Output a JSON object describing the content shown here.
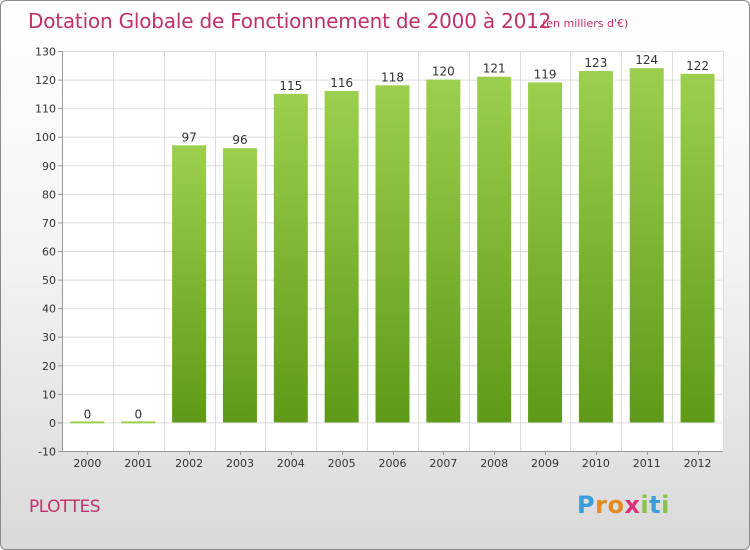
{
  "header": {
    "title": "Dotation Globale de Fonctionnement de 2000 à 2012",
    "subtitle": "(en milliers d'€)"
  },
  "footer": {
    "commune": "PLOTTES",
    "logo_letters": [
      "P",
      "r",
      "o",
      "x",
      "i",
      "t",
      "i"
    ],
    "logo_colors": [
      "#3a9fd8",
      "#e58a1f",
      "#e58a1f",
      "#d9317a",
      "#8bc34a",
      "#3a9fd8",
      "#8bc34a"
    ]
  },
  "chart_data": {
    "type": "bar",
    "title": "Dotation Globale de Fonctionnement de 2000 à 2012",
    "subtitle": "(en milliers d'€)",
    "categories": [
      "2000",
      "2001",
      "2002",
      "2003",
      "2004",
      "2005",
      "2006",
      "2007",
      "2008",
      "2009",
      "2010",
      "2011",
      "2012"
    ],
    "values": [
      0,
      0,
      97,
      96,
      115,
      116,
      118,
      120,
      121,
      119,
      123,
      124,
      122
    ],
    "ylim": [
      -10,
      130
    ],
    "yticks": [
      -10,
      0,
      10,
      20,
      30,
      40,
      50,
      60,
      70,
      80,
      90,
      100,
      110,
      120,
      130
    ],
    "grid": true,
    "legend": "none",
    "colors": {
      "bar_top": "#9ccf4e",
      "bar_bottom": "#5e9a17",
      "label": "#333333",
      "grid": "#dddddd",
      "axis": "#999999",
      "title": "#c0306a"
    }
  }
}
